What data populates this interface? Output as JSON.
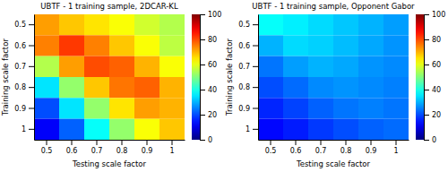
{
  "chart_data": [
    {
      "type": "heatmap",
      "title": "UBTF - 1 training sample, 2DCAR-KL",
      "x_label": "Testing scale factor",
      "y_label": "Training scale factor",
      "x_categories": [
        "0.5",
        "0.6",
        "0.7",
        "0.8",
        "0.9",
        "1"
      ],
      "y_categories": [
        "0.5",
        "0.6",
        "0.7",
        "0.8",
        "0.9",
        "1"
      ],
      "color": "jet",
      "colorbar_lim": [
        0,
        100
      ],
      "colorbar_ticks": [
        0,
        20,
        40,
        60,
        80,
        100
      ],
      "values": [
        [
          72,
          68,
          65,
          62,
          58,
          55
        ],
        [
          75,
          82,
          75,
          68,
          62,
          56
        ],
        [
          55,
          72,
          80,
          78,
          70,
          62
        ],
        [
          35,
          52,
          68,
          76,
          78,
          70
        ],
        [
          20,
          35,
          52,
          65,
          72,
          70
        ],
        [
          12,
          22,
          38,
          52,
          62,
          68
        ]
      ]
    },
    {
      "type": "heatmap",
      "title": "UBTF - 1 training sample, Opponent Gabor",
      "x_label": "Testing scale factor",
      "y_label": "Training scale factor",
      "x_categories": [
        "0.5",
        "0.6",
        "0.7",
        "0.8",
        "0.9",
        "1"
      ],
      "y_categories": [
        "0.5",
        "0.6",
        "0.7",
        "0.8",
        "0.9",
        "1"
      ],
      "color": "jet",
      "colorbar_lim": [
        0,
        100
      ],
      "colorbar_ticks": [
        0,
        20,
        40,
        60,
        80,
        100
      ],
      "values": [
        [
          38,
          36,
          34,
          32,
          30,
          28
        ],
        [
          30,
          34,
          33,
          31,
          29,
          27
        ],
        [
          24,
          28,
          30,
          29,
          27,
          26
        ],
        [
          20,
          23,
          26,
          27,
          26,
          25
        ],
        [
          16,
          19,
          22,
          24,
          25,
          24
        ],
        [
          13,
          15,
          18,
          20,
          22,
          23
        ]
      ]
    }
  ]
}
